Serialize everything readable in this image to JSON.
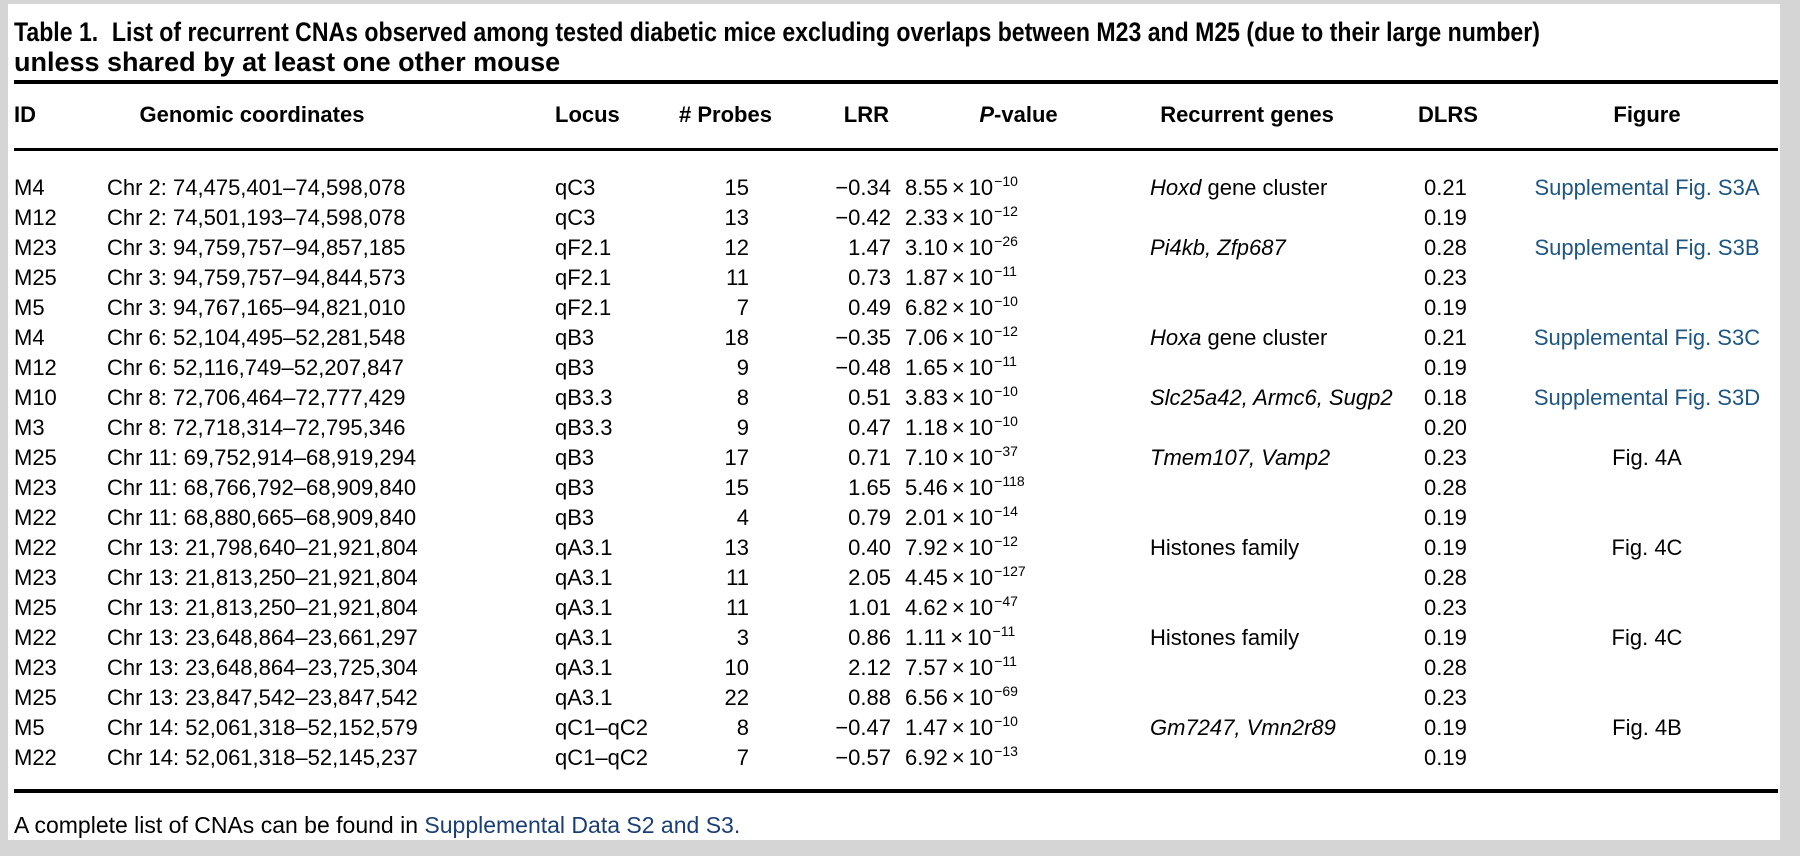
{
  "colors": {
    "page_background": "#d5d5d5",
    "panel_background": "#ffffff",
    "text": "#000000",
    "figure_link": "#1d5583",
    "footer_link": "#1a3e75"
  },
  "title": {
    "label": "Table 1.",
    "line1": "List of recurrent CNAs observed among tested diabetic mice excluding overlaps between M23 and M25 (due to their large number)",
    "line2": "unless shared by at least one other mouse"
  },
  "table": {
    "headers": {
      "id": "ID",
      "coords": "Genomic coordinates",
      "locus": "Locus",
      "probes": "# Probes",
      "lrr": "LRR",
      "p_italic": "P",
      "p_rest": "-value",
      "genes": "Recurrent genes",
      "dlrs": "DLRS",
      "figure": "Figure"
    },
    "notation": {
      "times": "×",
      "base": "10"
    },
    "rows": [
      {
        "id": "M4",
        "coords": "Chr 2: 74,475,401–74,598,078",
        "locus": "qC3",
        "probes": "15",
        "lrr": "−0.34",
        "p_m": "8.55",
        "p_e": "−10",
        "gene_i": "Hoxd",
        "gene_r": " gene cluster",
        "dlrs": "0.21",
        "figure": "Supplemental Fig. S3A",
        "figure_link": true
      },
      {
        "id": "M12",
        "coords": "Chr 2: 74,501,193–74,598,078",
        "locus": "qC3",
        "probes": "13",
        "lrr": "−0.42",
        "p_m": "2.33",
        "p_e": "−12",
        "gene_i": "",
        "gene_r": "",
        "dlrs": "0.19",
        "figure": "",
        "figure_link": false
      },
      {
        "id": "M23",
        "coords": "Chr 3: 94,759,757–94,857,185",
        "locus": "qF2.1",
        "probes": "12",
        "lrr": "1.47",
        "p_m": "3.10",
        "p_e": "−26",
        "gene_i": "Pi4kb, Zfp687",
        "gene_r": "",
        "dlrs": "0.28",
        "figure": "Supplemental Fig. S3B",
        "figure_link": true
      },
      {
        "id": "M25",
        "coords": "Chr 3: 94,759,757–94,844,573",
        "locus": "qF2.1",
        "probes": "11",
        "lrr": "0.73",
        "p_m": "1.87",
        "p_e": "−11",
        "gene_i": "",
        "gene_r": "",
        "dlrs": "0.23",
        "figure": "",
        "figure_link": false
      },
      {
        "id": "M5",
        "coords": "Chr 3: 94,767,165–94,821,010",
        "locus": "qF2.1",
        "probes": "7",
        "lrr": "0.49",
        "p_m": "6.82",
        "p_e": "−10",
        "gene_i": "",
        "gene_r": "",
        "dlrs": "0.19",
        "figure": "",
        "figure_link": false
      },
      {
        "id": "M4",
        "coords": "Chr 6: 52,104,495–52,281,548",
        "locus": "qB3",
        "probes": "18",
        "lrr": "−0.35",
        "p_m": "7.06",
        "p_e": "−12",
        "gene_i": "Hoxa",
        "gene_r": " gene cluster",
        "dlrs": "0.21",
        "figure": "Supplemental Fig. S3C",
        "figure_link": true
      },
      {
        "id": "M12",
        "coords": "Chr 6: 52,116,749–52,207,847",
        "locus": "qB3",
        "probes": "9",
        "lrr": "−0.48",
        "p_m": "1.65",
        "p_e": "−11",
        "gene_i": "",
        "gene_r": "",
        "dlrs": "0.19",
        "figure": "",
        "figure_link": false
      },
      {
        "id": "M10",
        "coords": "Chr 8: 72,706,464–72,777,429",
        "locus": "qB3.3",
        "probes": "8",
        "lrr": "0.51",
        "p_m": "3.83",
        "p_e": "−10",
        "gene_i": "Slc25a42, Armc6, Sugp2",
        "gene_r": "",
        "dlrs": "0.18",
        "figure": "Supplemental Fig. S3D",
        "figure_link": true
      },
      {
        "id": "M3",
        "coords": "Chr 8: 72,718,314–72,795,346",
        "locus": "qB3.3",
        "probes": "9",
        "lrr": "0.47",
        "p_m": "1.18",
        "p_e": "−10",
        "gene_i": "",
        "gene_r": "",
        "dlrs": "0.20",
        "figure": "",
        "figure_link": false
      },
      {
        "id": "M25",
        "coords": "Chr 11: 69,752,914–68,919,294",
        "locus": "qB3",
        "probes": "17",
        "lrr": "0.71",
        "p_m": "7.10",
        "p_e": "−37",
        "gene_i": "Tmem107, Vamp2",
        "gene_r": "",
        "dlrs": "0.23",
        "figure": "Fig. 4A",
        "figure_link": false
      },
      {
        "id": "M23",
        "coords": "Chr 11: 68,766,792–68,909,840",
        "locus": "qB3",
        "probes": "15",
        "lrr": "1.65",
        "p_m": "5.46",
        "p_e": "−118",
        "gene_i": "",
        "gene_r": "",
        "dlrs": "0.28",
        "figure": "",
        "figure_link": false
      },
      {
        "id": "M22",
        "coords": "Chr 11: 68,880,665–68,909,840",
        "locus": "qB3",
        "probes": "4",
        "lrr": "0.79",
        "p_m": "2.01",
        "p_e": "−14",
        "gene_i": "",
        "gene_r": "",
        "dlrs": "0.19",
        "figure": "",
        "figure_link": false
      },
      {
        "id": "M22",
        "coords": "Chr 13: 21,798,640–21,921,804",
        "locus": "qA3.1",
        "probes": "13",
        "lrr": "0.40",
        "p_m": "7.92",
        "p_e": "−12",
        "gene_i": "",
        "gene_r": "Histones family",
        "dlrs": "0.19",
        "figure": "Fig. 4C",
        "figure_link": false
      },
      {
        "id": "M23",
        "coords": "Chr 13: 21,813,250–21,921,804",
        "locus": "qA3.1",
        "probes": "11",
        "lrr": "2.05",
        "p_m": "4.45",
        "p_e": "−127",
        "gene_i": "",
        "gene_r": "",
        "dlrs": "0.28",
        "figure": "",
        "figure_link": false
      },
      {
        "id": "M25",
        "coords": "Chr 13: 21,813,250–21,921,804",
        "locus": "qA3.1",
        "probes": "11",
        "lrr": "1.01",
        "p_m": "4.62",
        "p_e": "−47",
        "gene_i": "",
        "gene_r": "",
        "dlrs": "0.23",
        "figure": "",
        "figure_link": false
      },
      {
        "id": "M22",
        "coords": "Chr 13: 23,648,864–23,661,297",
        "locus": "qA3.1",
        "probes": "3",
        "lrr": "0.86",
        "p_m": "1.11",
        "p_e": "−11",
        "gene_i": "",
        "gene_r": "Histones family",
        "dlrs": "0.19",
        "figure": "Fig. 4C",
        "figure_link": false
      },
      {
        "id": "M23",
        "coords": "Chr 13: 23,648,864–23,725,304",
        "locus": "qA3.1",
        "probes": "10",
        "lrr": "2.12",
        "p_m": "7.57",
        "p_e": "−11",
        "gene_i": "",
        "gene_r": "",
        "dlrs": "0.28",
        "figure": "",
        "figure_link": false
      },
      {
        "id": "M25",
        "coords": "Chr 13: 23,847,542–23,847,542",
        "locus": "qA3.1",
        "probes": "22",
        "lrr": "0.88",
        "p_m": "6.56",
        "p_e": "−69",
        "gene_i": "",
        "gene_r": "",
        "dlrs": "0.23",
        "figure": "",
        "figure_link": false
      },
      {
        "id": "M5",
        "coords": "Chr 14: 52,061,318–52,152,579",
        "locus": "qC1–qC2",
        "probes": "8",
        "lrr": "−0.47",
        "p_m": "1.47",
        "p_e": "−10",
        "gene_i": "Gm7247, Vmn2r89",
        "gene_r": "",
        "dlrs": "0.19",
        "figure": "Fig. 4B",
        "figure_link": false
      },
      {
        "id": "M22",
        "coords": "Chr 14: 52,061,318–52,145,237",
        "locus": "qC1–qC2",
        "probes": "7",
        "lrr": "−0.57",
        "p_m": "6.92",
        "p_e": "−13",
        "gene_i": "",
        "gene_r": "",
        "dlrs": "0.19",
        "figure": "",
        "figure_link": false
      }
    ]
  },
  "footer": {
    "text": "A complete list of CNAs can be found in ",
    "link": "Supplemental Data S2 and S3."
  }
}
